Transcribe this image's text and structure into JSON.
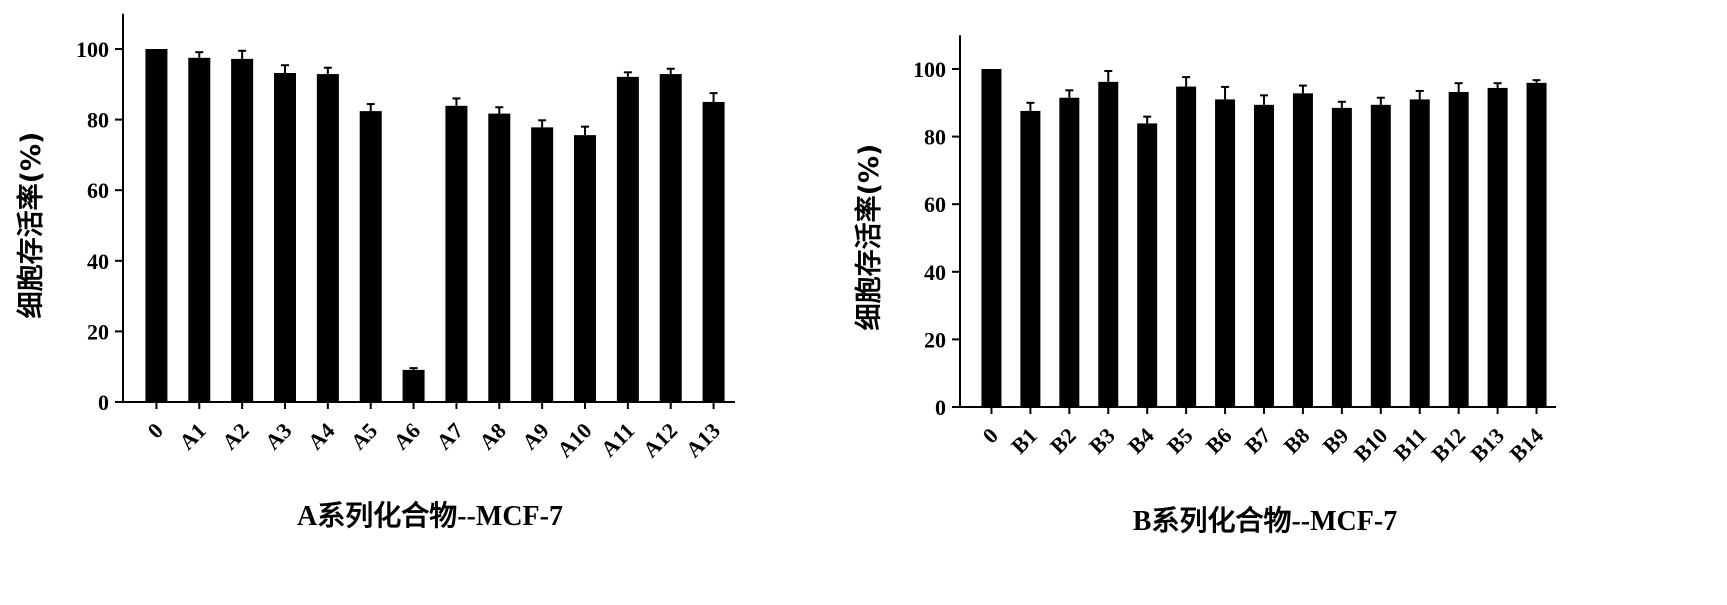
{
  "chart_data": [
    {
      "type": "bar",
      "title": "",
      "xlabel": "A系列化合物--MCF-7",
      "ylabel": "细胞存活率(%)",
      "ylim": [
        0,
        110
      ],
      "yticks": [
        0,
        20,
        40,
        60,
        80,
        100
      ],
      "grid": false,
      "bar_color": "#000000",
      "categories": [
        "0",
        "A1",
        "A2",
        "A3",
        "A4",
        "A5",
        "A6",
        "A7",
        "A8",
        "A9",
        "A10",
        "A11",
        "A12",
        "A13"
      ],
      "values": [
        100,
        97.5,
        97.2,
        93.2,
        92.9,
        82.4,
        9.1,
        83.9,
        81.7,
        77.8,
        75.6,
        92.1,
        92.9,
        85.0
      ],
      "errors": [
        0,
        1.6,
        2.3,
        2.2,
        1.8,
        2.0,
        0.5,
        2.1,
        1.8,
        2.0,
        2.4,
        1.3,
        1.5,
        2.5
      ]
    },
    {
      "type": "bar",
      "title": "",
      "xlabel": "B系列化合物--MCF-7",
      "ylabel": "细胞存活率(%)",
      "ylim": [
        0,
        110
      ],
      "yticks": [
        0,
        20,
        40,
        60,
        80,
        100
      ],
      "grid": false,
      "bar_color": "#000000",
      "categories": [
        "0",
        "B1",
        "B2",
        "B3",
        "B4",
        "B5",
        "B6",
        "B7",
        "B8",
        "B9",
        "B10",
        "B11",
        "B12",
        "B13",
        "B14"
      ],
      "values": [
        100,
        87.6,
        91.5,
        96.2,
        83.9,
        94.8,
        91.0,
        89.4,
        92.8,
        88.5,
        89.4,
        91.0,
        93.2,
        94.4,
        95.9
      ],
      "errors": [
        0,
        2.4,
        2.2,
        3.2,
        2.0,
        2.8,
        3.7,
        2.8,
        2.3,
        1.8,
        2.1,
        2.5,
        2.6,
        1.4,
        0.8
      ]
    }
  ]
}
